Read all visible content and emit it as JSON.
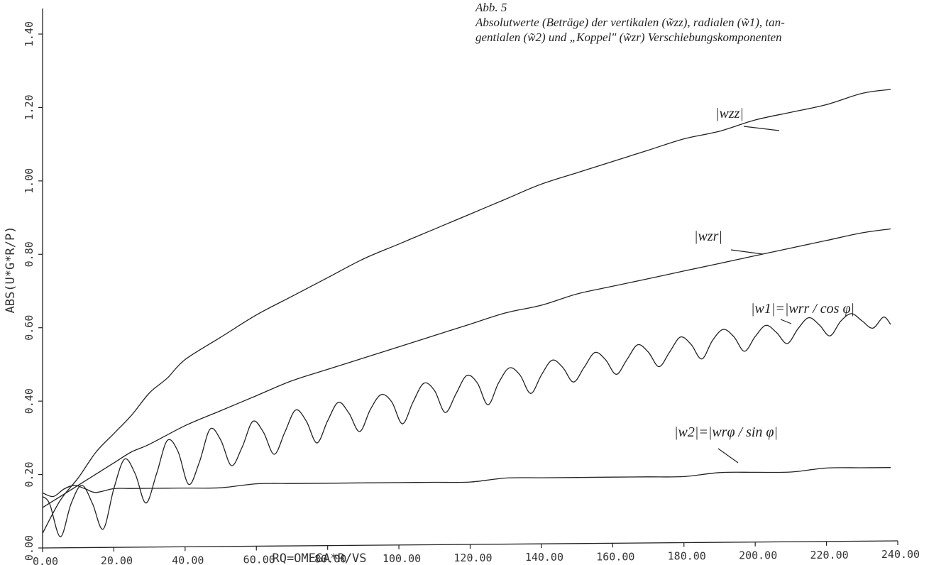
{
  "caption": {
    "line1": "Abb. 5",
    "line2": "Absolutwerte (Beträge) der vertikalen (w̃zz), radialen (w̃1), tan-",
    "line3": "gentialen (w̃2) und „Koppel\" (w̃zr) Verschiebungskomponenten"
  },
  "chart_data": {
    "type": "line",
    "xlabel": "RQ=OMEGA*R/VS",
    "ylabel": "ABS(U*G*R/P)",
    "xlim": [
      0,
      240
    ],
    "ylim": [
      0,
      1.4
    ],
    "x_ticks": [
      "0.00",
      "20.00",
      "40.00",
      "60.00",
      "80.00",
      "100.00",
      "120.00",
      "140.00",
      "160.00",
      "180.00",
      "200.00",
      "220.00",
      "240.00"
    ],
    "y_ticks": [
      "0.00",
      "0.20",
      "0.40",
      "0.60",
      "0.80",
      "1.00",
      "1.20",
      "1.40"
    ],
    "grid": false,
    "annotations": [
      "|wzz|",
      "|wzr|",
      "|w1|=|wrr / cos φ|",
      "|w2|=|wrφ / sin φ|"
    ],
    "series": [
      {
        "name": "|wzz|",
        "x": [
          0,
          5,
          10,
          15,
          20,
          25,
          30,
          35,
          40,
          50,
          60,
          70,
          80,
          90,
          100,
          110,
          120,
          130,
          140,
          150,
          160,
          170,
          180,
          190,
          200,
          210,
          220,
          230,
          238
        ],
        "y": [
          0.04,
          0.13,
          0.19,
          0.26,
          0.31,
          0.36,
          0.42,
          0.46,
          0.51,
          0.57,
          0.63,
          0.68,
          0.73,
          0.78,
          0.82,
          0.86,
          0.9,
          0.94,
          0.98,
          1.01,
          1.04,
          1.07,
          1.1,
          1.12,
          1.15,
          1.17,
          1.19,
          1.22,
          1.23
        ]
      },
      {
        "name": "|wzr|",
        "x": [
          0,
          5,
          10,
          15,
          20,
          25,
          30,
          40,
          50,
          60,
          70,
          80,
          90,
          100,
          110,
          120,
          130,
          140,
          150,
          160,
          170,
          180,
          190,
          200,
          210,
          220,
          230,
          238
        ],
        "y": [
          0.11,
          0.14,
          0.17,
          0.2,
          0.23,
          0.26,
          0.28,
          0.33,
          0.37,
          0.41,
          0.45,
          0.48,
          0.51,
          0.54,
          0.57,
          0.6,
          0.63,
          0.65,
          0.68,
          0.7,
          0.72,
          0.74,
          0.76,
          0.78,
          0.8,
          0.82,
          0.84,
          0.85
        ]
      },
      {
        "name": "|w1|",
        "x": [
          0,
          2,
          5,
          8,
          11,
          14,
          17,
          20,
          23,
          26,
          29,
          32,
          35,
          38,
          41,
          44,
          47,
          50,
          53,
          56,
          59,
          62,
          65,
          68,
          71,
          74,
          77,
          80,
          83,
          86,
          89,
          92,
          95,
          98,
          101,
          104,
          107,
          110,
          113,
          116,
          119,
          122,
          125,
          128,
          131,
          134,
          137,
          140,
          143,
          146,
          149,
          152,
          155,
          158,
          161,
          164,
          167,
          170,
          173,
          176,
          179,
          182,
          185,
          188,
          191,
          194,
          197,
          200,
          203,
          206,
          209,
          212,
          215,
          218,
          221,
          224,
          227,
          230,
          233,
          236,
          238
        ],
        "y": [
          0.14,
          0.12,
          0.03,
          0.12,
          0.17,
          0.12,
          0.05,
          0.16,
          0.24,
          0.2,
          0.12,
          0.2,
          0.29,
          0.26,
          0.17,
          0.23,
          0.32,
          0.29,
          0.22,
          0.27,
          0.34,
          0.31,
          0.25,
          0.31,
          0.37,
          0.34,
          0.28,
          0.34,
          0.39,
          0.36,
          0.31,
          0.37,
          0.41,
          0.39,
          0.33,
          0.39,
          0.44,
          0.42,
          0.36,
          0.41,
          0.46,
          0.44,
          0.38,
          0.44,
          0.48,
          0.46,
          0.41,
          0.46,
          0.5,
          0.48,
          0.44,
          0.48,
          0.52,
          0.5,
          0.46,
          0.5,
          0.54,
          0.52,
          0.48,
          0.52,
          0.56,
          0.54,
          0.5,
          0.55,
          0.58,
          0.56,
          0.52,
          0.56,
          0.59,
          0.57,
          0.54,
          0.58,
          0.61,
          0.59,
          0.56,
          0.6,
          0.62,
          0.6,
          0.58,
          0.61,
          0.59
        ]
      },
      {
        "name": "|w2|",
        "x": [
          0,
          3,
          6,
          9,
          12,
          15,
          20,
          25,
          30,
          35,
          40,
          50,
          60,
          70,
          80,
          90,
          100,
          110,
          120,
          130,
          140,
          150,
          160,
          170,
          180,
          190,
          200,
          210,
          220,
          230,
          238
        ],
        "y": [
          0.15,
          0.14,
          0.16,
          0.17,
          0.16,
          0.15,
          0.16,
          0.16,
          0.16,
          0.16,
          0.16,
          0.16,
          0.17,
          0.17,
          0.17,
          0.17,
          0.17,
          0.17,
          0.17,
          0.18,
          0.18,
          0.18,
          0.18,
          0.18,
          0.18,
          0.19,
          0.19,
          0.19,
          0.2,
          0.2,
          0.2
        ]
      }
    ]
  }
}
